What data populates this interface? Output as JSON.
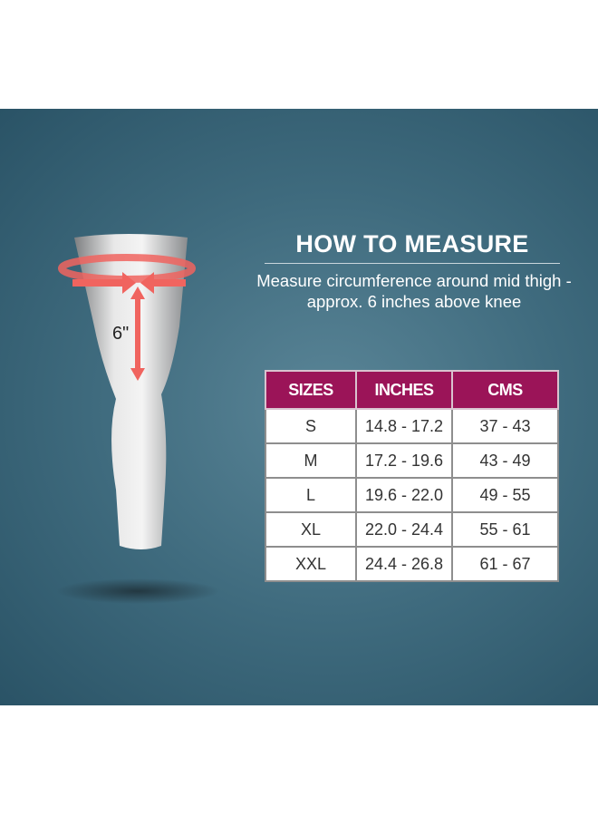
{
  "illustration": {
    "measurement_label": "6\""
  },
  "heading": "HOW TO MEASURE",
  "instruction": "Measure circumference around mid thigh - approx. 6 inches above knee",
  "size_table": {
    "headers": [
      "SIZES",
      "INCHES",
      "CMS"
    ],
    "rows": [
      [
        "S",
        "14.8 - 17.2",
        "37 - 43"
      ],
      [
        "M",
        "17.2 - 19.6",
        "43 - 49"
      ],
      [
        "L",
        "19.6 - 22.0",
        "49 - 55"
      ],
      [
        "XL",
        "22.0 - 24.4",
        "55 - 61"
      ],
      [
        "XXL",
        "24.4 - 26.8",
        "61 - 67"
      ]
    ]
  },
  "colors": {
    "header": "#9b1458",
    "background": "#3f6b7e",
    "arrow": "#f0645f"
  }
}
